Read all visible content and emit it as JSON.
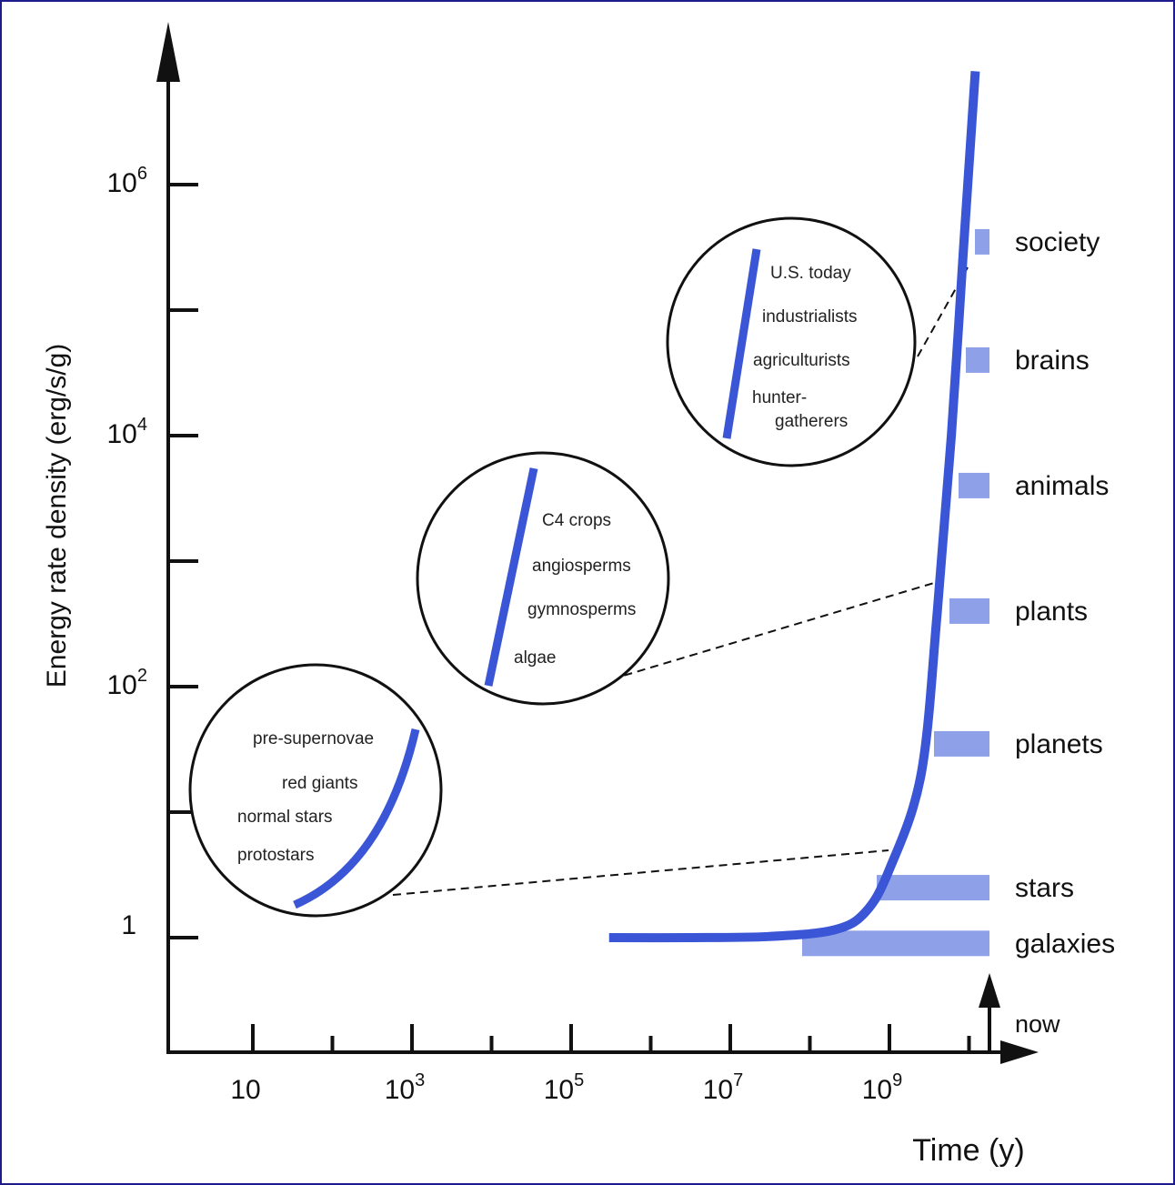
{
  "chart_data": {
    "type": "line",
    "ylabel": "Energy rate density (erg/s/g)",
    "xlabel": "Time (y)",
    "x_scale": "log",
    "y_scale": "log",
    "x_ticks": [
      {
        "base": "10",
        "exp": ""
      },
      {
        "base": "10",
        "exp": "3"
      },
      {
        "base": "10",
        "exp": "5"
      },
      {
        "base": "10",
        "exp": "7"
      },
      {
        "base": "10",
        "exp": "9"
      }
    ],
    "y_ticks": [
      {
        "base": "1",
        "exp": ""
      },
      {
        "base": "10",
        "exp": "2"
      },
      {
        "base": "10",
        "exp": "4"
      },
      {
        "base": "10",
        "exp": "6"
      }
    ],
    "now_label": "now",
    "line_color": "#3a56d6",
    "band_color": "#8ea1e8",
    "series": [
      {
        "name": "",
        "points": [
          {
            "x": 300000,
            "y": 1.0
          },
          {
            "x": 3000000,
            "y": 1.0
          },
          {
            "x": 30000000,
            "y": 1.02
          },
          {
            "x": 200000000,
            "y": 1.15
          },
          {
            "x": 500000000,
            "y": 1.6
          },
          {
            "x": 1000000000,
            "y": 3.5
          },
          {
            "x": 2500000000,
            "y": 20
          },
          {
            "x": 4000000000,
            "y": 400
          },
          {
            "x": 6000000000,
            "y": 10000
          },
          {
            "x": 8500000000,
            "y": 300000
          },
          {
            "x": 12000000000,
            "y": 8000000
          }
        ]
      }
    ],
    "stages": [
      {
        "label": "society",
        "y": 350000
      },
      {
        "label": "brains",
        "y": 40000
      },
      {
        "label": "animals",
        "y": 4000
      },
      {
        "label": "plants",
        "y": 400
      },
      {
        "label": "planets",
        "y": 35
      },
      {
        "label": "stars",
        "y": 2.5
      },
      {
        "label": "galaxies",
        "y": 0.9
      }
    ],
    "insets": [
      {
        "labels": [
          "pre-supernovae",
          "red giants",
          "normal stars",
          "protostars"
        ]
      },
      {
        "labels": [
          "C4 crops",
          "angiosperms",
          "gymnosperms",
          "algae"
        ]
      },
      {
        "labels": [
          "U.S. today",
          "industrialists",
          "agriculturists",
          "hunter-",
          "gatherers"
        ]
      }
    ]
  }
}
